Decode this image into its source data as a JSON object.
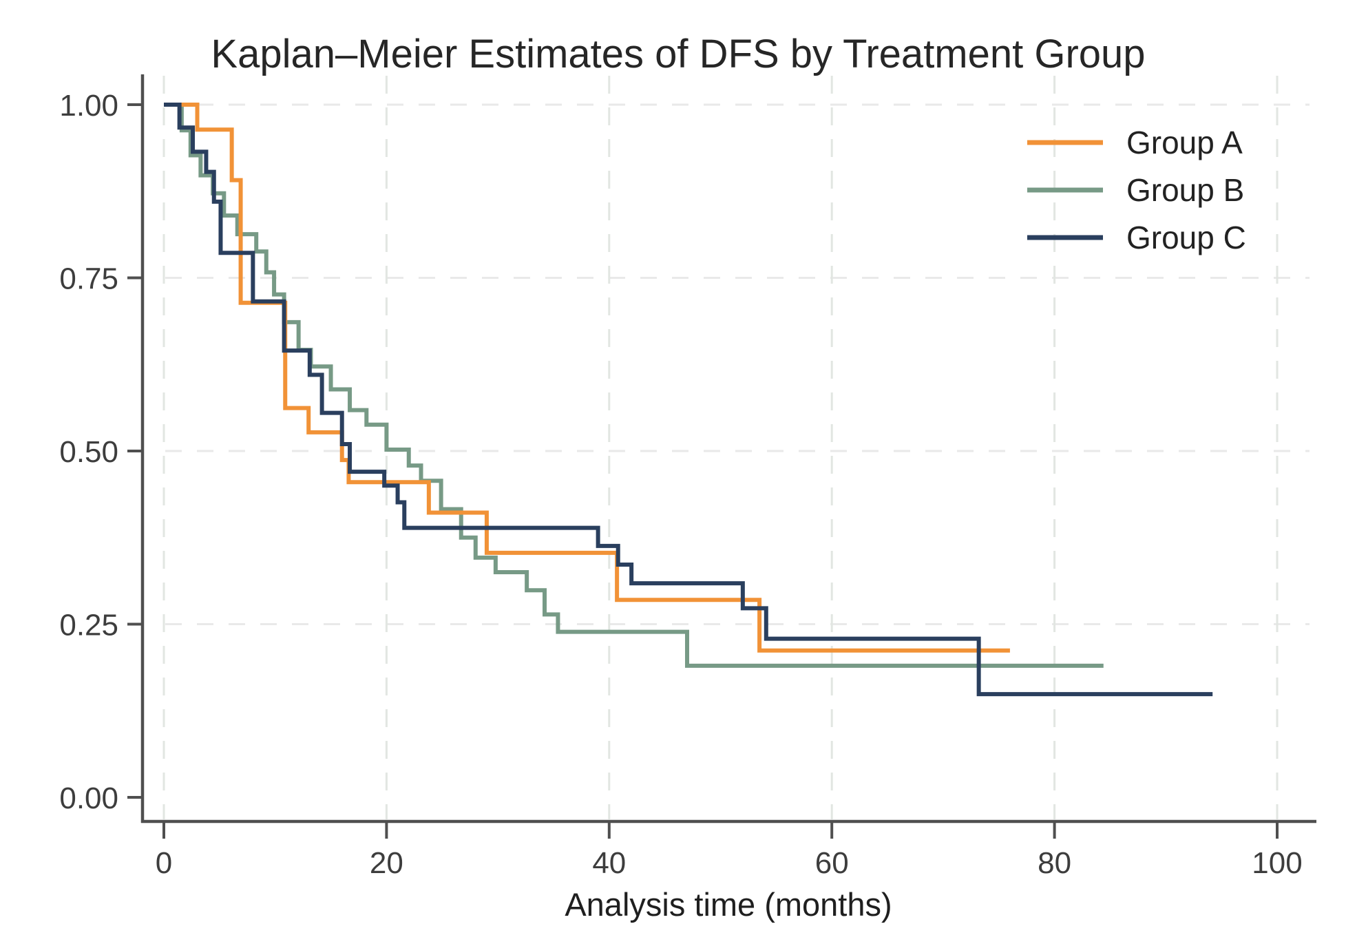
{
  "chart_data": {
    "type": "line",
    "subtype": "kaplan-meier-step",
    "title": "Kaplan–Meier Estimates of DFS by Treatment Group",
    "xlabel": "Analysis time (months)",
    "ylabel": "",
    "xlim": [
      0,
      100
    ],
    "ylim": [
      0.0,
      1.0
    ],
    "grid": true,
    "legend_position": "top-right",
    "x_ticks": [
      0,
      20,
      40,
      60,
      80,
      100
    ],
    "x_tick_labels": [
      "0",
      "20",
      "40",
      "60",
      "80",
      "100"
    ],
    "y_ticks": [
      0.0,
      0.25,
      0.5,
      0.75,
      1.0
    ],
    "y_tick_labels": [
      "0.00",
      "0.25",
      "0.50",
      "0.75",
      "1.00"
    ],
    "colors": {
      "axis": "#4f4f4f",
      "grid_horizontal": "#e9e9e9",
      "grid_vertical": "#e2e6e2",
      "title": "#262626",
      "tick_label": "#3d3d3d"
    },
    "series": [
      {
        "name": "Group A",
        "color": "#f19237",
        "steps": [
          [
            0,
            1.0
          ],
          [
            3.0,
            0.964
          ],
          [
            6.1,
            0.891
          ],
          [
            6.9,
            0.714
          ],
          [
            10.9,
            0.562
          ],
          [
            13.0,
            0.527
          ],
          [
            16.0,
            0.487
          ],
          [
            16.6,
            0.455
          ],
          [
            23.8,
            0.411
          ],
          [
            29.0,
            0.353
          ],
          [
            40.7,
            0.285
          ],
          [
            53.5,
            0.212
          ]
        ],
        "end": 76.0
      },
      {
        "name": "Group B",
        "color": "#779a86",
        "steps": [
          [
            0,
            1.0
          ],
          [
            1.6,
            0.963
          ],
          [
            2.4,
            0.927
          ],
          [
            3.3,
            0.898
          ],
          [
            4.4,
            0.872
          ],
          [
            5.4,
            0.84
          ],
          [
            6.6,
            0.813
          ],
          [
            8.3,
            0.788
          ],
          [
            9.2,
            0.758
          ],
          [
            9.9,
            0.726
          ],
          [
            10.8,
            0.686
          ],
          [
            12.1,
            0.646
          ],
          [
            13.2,
            0.622
          ],
          [
            15.0,
            0.589
          ],
          [
            16.7,
            0.559
          ],
          [
            18.2,
            0.538
          ],
          [
            20.0,
            0.502
          ],
          [
            22.0,
            0.479
          ],
          [
            23.1,
            0.457
          ],
          [
            24.9,
            0.416
          ],
          [
            26.7,
            0.375
          ],
          [
            28.0,
            0.346
          ],
          [
            29.8,
            0.325
          ],
          [
            32.6,
            0.299
          ],
          [
            34.2,
            0.264
          ],
          [
            35.4,
            0.239
          ],
          [
            47.0,
            0.19
          ]
        ],
        "end": 84.4
      },
      {
        "name": "Group C",
        "color": "#2a3f5e",
        "steps": [
          [
            0,
            1.0
          ],
          [
            1.4,
            0.967
          ],
          [
            2.6,
            0.932
          ],
          [
            3.8,
            0.903
          ],
          [
            4.5,
            0.86
          ],
          [
            5.1,
            0.786
          ],
          [
            8.0,
            0.716
          ],
          [
            10.8,
            0.645
          ],
          [
            13.1,
            0.61
          ],
          [
            14.2,
            0.555
          ],
          [
            16.0,
            0.51
          ],
          [
            16.7,
            0.47
          ],
          [
            19.8,
            0.45
          ],
          [
            21.0,
            0.426
          ],
          [
            21.6,
            0.389
          ],
          [
            39.0,
            0.363
          ],
          [
            40.8,
            0.336
          ],
          [
            42.0,
            0.309
          ],
          [
            52.0,
            0.273
          ],
          [
            54.1,
            0.229
          ],
          [
            73.2,
            0.149
          ]
        ],
        "end": 94.2
      }
    ]
  }
}
